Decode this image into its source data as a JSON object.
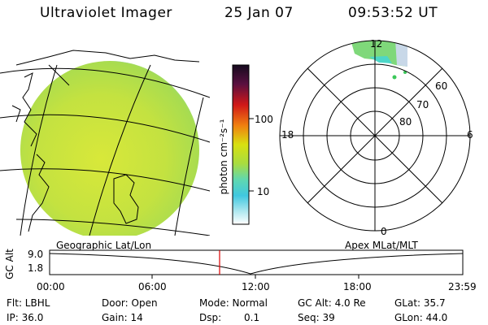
{
  "header": {
    "instrument": "Ultraviolet Imager",
    "date": "25 Jan 07",
    "time": "09:53:52 UT"
  },
  "colorbar": {
    "label": "photon cm⁻²s⁻¹",
    "ticks": [
      "100",
      "10"
    ]
  },
  "polar": {
    "mlt_labels": [
      "12",
      "18",
      "6",
      "0"
    ],
    "lat_labels": [
      "60",
      "70",
      "80"
    ]
  },
  "panel_labels": {
    "left": "Geographic Lat/Lon",
    "right": "Apex MLat/MLT"
  },
  "altitude_plot": {
    "ylabel": "GC Alt",
    "yticks": [
      "9.0",
      "1.8"
    ],
    "xticks": [
      "00:00",
      "06:00",
      "12:00",
      "18:00",
      "23:59"
    ],
    "current_time_marker": "09:53"
  },
  "footer": {
    "flt": "Flt: LBHL",
    "door": "Door: Open",
    "mode": "Mode: Normal",
    "gcalt": "GC Alt: 4.0 Re",
    "glat": "GLat: 35.7",
    "ip": "IP: 36.0",
    "gain": "Gain: 14",
    "dsp_label": "Dsp:",
    "dsp_value": "0.1",
    "seq": "Seq: 39",
    "glon": "GLon: 44.0"
  },
  "colors": {
    "marker": "#dd0000",
    "aurora_green": "#8ee07a",
    "aurora_cyan": "#4dd6c8"
  }
}
